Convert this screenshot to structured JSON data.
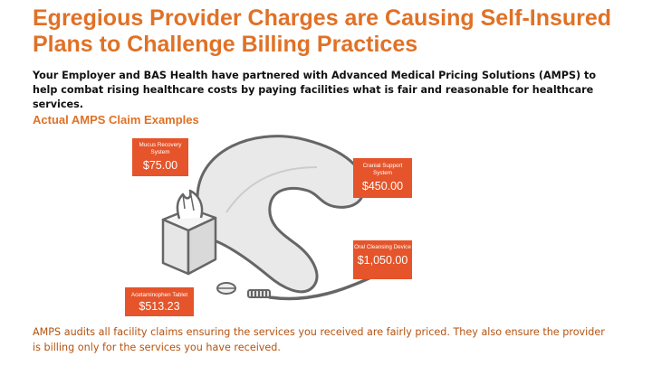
{
  "slide": {
    "title": "Egregious Provider Charges are Causing Self-Insured Plans to Challenge Billing Practices",
    "intro": "Your Employer and BAS Health have partnered with Advanced Medical Pricing Solutions (AMPS) to help combat rising healthcare costs by paying facilities what is fair and reasonable for healthcare services.",
    "subheading": "Actual AMPS Claim Examples",
    "footer": "AMPS audits all facility claims ensuring the services you received are fairly priced.  They also ensure the provider is billing only for the services you have received."
  },
  "claims": [
    {
      "name": "Mucus Recovery System",
      "price": "$75.00"
    },
    {
      "name": "Cranial Support System",
      "price": "$450.00"
    },
    {
      "name": "Oral Cleansing Device",
      "price": "$1,050.00"
    },
    {
      "name": "Acetaminophen Tablet",
      "price": "$513.23"
    }
  ],
  "colors": {
    "title": "#e07126",
    "callout": "#e5542a",
    "footer_text": "#b5520f",
    "illustration_stroke": "#666666",
    "illustration_fill": "#e8e8e8"
  },
  "icons": [
    "tissue-box-icon",
    "neck-pillow-icon",
    "toothbrush-icon",
    "pill-icon"
  ]
}
